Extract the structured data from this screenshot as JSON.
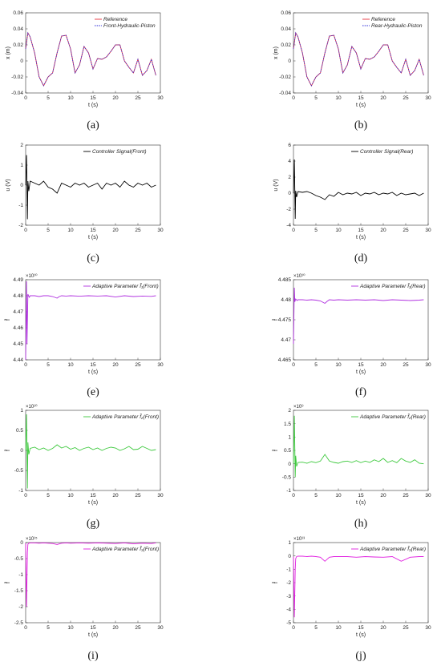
{
  "chart_data": [
    {
      "type": "line",
      "caption": "(a)",
      "xlabel": "t (s)",
      "ylabel": "x (m)",
      "xlim": [
        0,
        30
      ],
      "ylim": [
        -0.04,
        0.06
      ],
      "xticks": [
        "0",
        "5",
        "10",
        "15",
        "20",
        "25",
        "30"
      ],
      "yticks": [
        "0.06",
        "0.04",
        "0.02",
        "0",
        "-0.02",
        "-0.04"
      ],
      "exponent": "",
      "legend_position": "top-right",
      "series": [
        {
          "name": "Reference",
          "color": "#e8323c",
          "style": "solid",
          "x": [
            0,
            0.5,
            1,
            2,
            3,
            4,
            5,
            6,
            7,
            8,
            9,
            10,
            11,
            12,
            13,
            14,
            15,
            16,
            17,
            18,
            19,
            20,
            21,
            22,
            23,
            24,
            25,
            26,
            27,
            28,
            29
          ],
          "y": [
            0.015,
            0.035,
            0.03,
            0.01,
            -0.02,
            -0.031,
            -0.02,
            -0.015,
            0.01,
            0.031,
            0.032,
            0.015,
            -0.015,
            -0.005,
            0.018,
            0.01,
            -0.01,
            0.003,
            0.002,
            0.005,
            0.012,
            0.02,
            0.02,
            0.0,
            -0.008,
            -0.015,
            0.002,
            -0.018,
            -0.012,
            0.002,
            -0.018
          ]
        },
        {
          "name": "Front-Hydraulic-Piston",
          "color": "#2a2ad8",
          "style": "dotted",
          "x": [
            0,
            0.5,
            1,
            2,
            3,
            4,
            5,
            6,
            7,
            8,
            9,
            10,
            11,
            12,
            13,
            14,
            15,
            16,
            17,
            18,
            19,
            20,
            21,
            22,
            23,
            24,
            25,
            26,
            27,
            28,
            29
          ],
          "y": [
            0.015,
            0.035,
            0.03,
            0.01,
            -0.02,
            -0.031,
            -0.02,
            -0.015,
            0.01,
            0.031,
            0.032,
            0.015,
            -0.015,
            -0.005,
            0.018,
            0.01,
            -0.01,
            0.003,
            0.002,
            0.005,
            0.012,
            0.02,
            0.02,
            0.0,
            -0.008,
            -0.015,
            0.002,
            -0.018,
            -0.012,
            0.002,
            -0.018
          ]
        }
      ]
    },
    {
      "type": "line",
      "caption": "(b)",
      "xlabel": "t (s)",
      "ylabel": "x (m)",
      "xlim": [
        0,
        30
      ],
      "ylim": [
        -0.04,
        0.06
      ],
      "xticks": [
        "0",
        "5",
        "10",
        "15",
        "20",
        "25",
        "30"
      ],
      "yticks": [
        "0.06",
        "0.04",
        "0.02",
        "0",
        "-0.02",
        "-0.04"
      ],
      "exponent": "",
      "legend_position": "top-right",
      "series": [
        {
          "name": "Reference",
          "color": "#e8323c",
          "style": "solid",
          "x": [
            0,
            0.5,
            1,
            2,
            3,
            4,
            5,
            6,
            7,
            8,
            9,
            10,
            11,
            12,
            13,
            14,
            15,
            16,
            17,
            18,
            19,
            20,
            21,
            22,
            23,
            24,
            25,
            26,
            27,
            28,
            29
          ],
          "y": [
            0.015,
            0.035,
            0.03,
            0.01,
            -0.02,
            -0.031,
            -0.02,
            -0.015,
            0.01,
            0.031,
            0.032,
            0.015,
            -0.015,
            -0.005,
            0.018,
            0.01,
            -0.01,
            0.003,
            0.002,
            0.005,
            0.012,
            0.02,
            0.02,
            0.0,
            -0.008,
            -0.015,
            0.002,
            -0.018,
            -0.012,
            0.002,
            -0.018
          ]
        },
        {
          "name": "Rear-Hydraulic-Piston",
          "color": "#2a2ad8",
          "style": "dotted",
          "x": [
            0,
            0.5,
            1,
            2,
            3,
            4,
            5,
            6,
            7,
            8,
            9,
            10,
            11,
            12,
            13,
            14,
            15,
            16,
            17,
            18,
            19,
            20,
            21,
            22,
            23,
            24,
            25,
            26,
            27,
            28,
            29
          ],
          "y": [
            0.015,
            0.035,
            0.03,
            0.01,
            -0.02,
            -0.031,
            -0.02,
            -0.015,
            0.01,
            0.031,
            0.032,
            0.015,
            -0.015,
            -0.005,
            0.018,
            0.01,
            -0.01,
            0.003,
            0.002,
            0.005,
            0.012,
            0.02,
            0.02,
            0.0,
            -0.008,
            -0.015,
            0.002,
            -0.018,
            -0.012,
            0.002,
            -0.018
          ]
        }
      ]
    },
    {
      "type": "line",
      "caption": "(c)",
      "xlabel": "t (s)",
      "ylabel": "u (V)",
      "xlim": [
        0,
        30
      ],
      "ylim": [
        -2,
        2
      ],
      "xticks": [
        "0",
        "5",
        "10",
        "15",
        "20",
        "25",
        "30"
      ],
      "yticks": [
        "2",
        "1",
        "0",
        "-1",
        "-2"
      ],
      "exponent": "",
      "legend_position": "top-right",
      "series": [
        {
          "name": "Controller Signal(Front)",
          "color": "#000000",
          "style": "solid",
          "x": [
            0,
            0.2,
            0.4,
            0.5,
            0.7,
            1,
            2,
            3,
            4,
            5,
            6,
            7,
            8,
            9,
            10,
            11,
            12,
            13,
            14,
            15,
            16,
            17,
            18,
            19,
            20,
            21,
            22,
            23,
            24,
            25,
            26,
            27,
            28,
            29
          ],
          "y": [
            0,
            1.5,
            -1.7,
            0.2,
            -0.3,
            0.2,
            0.1,
            0.0,
            0.2,
            -0.1,
            -0.2,
            -0.4,
            0.1,
            0.0,
            -0.1,
            0.1,
            0.0,
            0.1,
            -0.1,
            0.0,
            0.1,
            -0.2,
            0.1,
            0.0,
            0.1,
            -0.1,
            0.2,
            0.0,
            -0.1,
            0.1,
            0.0,
            0.1,
            -0.1,
            0.0
          ]
        }
      ]
    },
    {
      "type": "line",
      "caption": "(d)",
      "xlabel": "t (s)",
      "ylabel": "u (V)",
      "xlim": [
        0,
        30
      ],
      "ylim": [
        -4,
        6
      ],
      "xticks": [
        "0",
        "5",
        "10",
        "15",
        "20",
        "25",
        "30"
      ],
      "yticks": [
        "6",
        "4",
        "2",
        "0",
        "-2",
        "-4"
      ],
      "exponent": "",
      "legend_position": "top-right",
      "series": [
        {
          "name": "Controller Signal(Rear)",
          "color": "#000000",
          "style": "solid",
          "x": [
            0,
            0.2,
            0.4,
            0.5,
            0.7,
            1,
            2,
            3,
            4,
            5,
            6,
            7,
            8,
            9,
            10,
            11,
            12,
            13,
            14,
            15,
            16,
            17,
            18,
            19,
            20,
            21,
            22,
            23,
            24,
            25,
            26,
            27,
            28,
            29
          ],
          "y": [
            0,
            4.2,
            -3.2,
            0.3,
            -0.5,
            0.2,
            0.1,
            0.2,
            0.0,
            -0.3,
            -0.5,
            -0.8,
            -0.2,
            -0.4,
            0.1,
            -0.2,
            0.0,
            -0.1,
            0.1,
            -0.3,
            0.0,
            -0.1,
            0.1,
            -0.2,
            0.0,
            -0.1,
            0.1,
            -0.3,
            0.0,
            -0.2,
            -0.1,
            0.0,
            -0.3,
            0.0
          ]
        }
      ]
    },
    {
      "type": "line",
      "caption": "(e)",
      "xlabel": "t (s)",
      "ylabel": "f̂",
      "xlim": [
        0,
        30
      ],
      "ylim": [
        4.44,
        4.49
      ],
      "xticks": [
        "0",
        "5",
        "10",
        "15",
        "20",
        "25",
        "30"
      ],
      "yticks": [
        "4.49",
        "4.48",
        "4.47",
        "4.46",
        "4.45",
        "4.44"
      ],
      "exponent": "×10¹⁰",
      "legend_position": "top-right",
      "series": [
        {
          "name": "Adaptive Parameter f̂₁(Front)",
          "color": "#b030e0",
          "style": "solid",
          "x": [
            0,
            0.2,
            0.3,
            0.5,
            0.8,
            1,
            2,
            3,
            4,
            5,
            6,
            7,
            7.5,
            8,
            9,
            10,
            12,
            14,
            16,
            18,
            20,
            22,
            24,
            26,
            28,
            29
          ],
          "y": [
            4.44,
            4.489,
            4.45,
            4.481,
            4.479,
            4.48,
            4.48,
            4.4795,
            4.48,
            4.48,
            4.4795,
            4.4785,
            4.4795,
            4.48,
            4.4798,
            4.48,
            4.4797,
            4.48,
            4.4798,
            4.48,
            4.4792,
            4.48,
            4.4795,
            4.4798,
            4.4796,
            4.48
          ]
        }
      ]
    },
    {
      "type": "line",
      "caption": "(f)",
      "xlabel": "t (s)",
      "ylabel": "f̂",
      "xlim": [
        0,
        30
      ],
      "ylim": [
        4.465,
        4.485
      ],
      "xticks": [
        "0",
        "5",
        "10",
        "15",
        "20",
        "25",
        "30"
      ],
      "yticks": [
        "4.485",
        "4.48",
        "4.475",
        "4.47",
        "4.465"
      ],
      "exponent": "×10¹⁰",
      "legend_position": "top-right",
      "series": [
        {
          "name": "Adaptive Parameter f̂₁(Rear)",
          "color": "#b030e0",
          "style": "solid",
          "x": [
            0,
            0.2,
            0.3,
            0.5,
            0.8,
            1,
            2,
            3,
            4,
            5,
            6,
            7,
            7.5,
            8,
            9,
            10,
            12,
            14,
            16,
            18,
            20,
            22,
            24,
            26,
            28,
            29
          ],
          "y": [
            4.469,
            4.483,
            4.4795,
            4.4802,
            4.4798,
            4.48,
            4.48,
            4.4799,
            4.48,
            4.4799,
            4.4797,
            4.4791,
            4.4796,
            4.48,
            4.4799,
            4.48,
            4.4799,
            4.48,
            4.4799,
            4.48,
            4.4798,
            4.48,
            4.4799,
            4.4798,
            4.4799,
            4.48
          ]
        }
      ]
    },
    {
      "type": "line",
      "caption": "(g)",
      "xlabel": "t (s)",
      "ylabel": "f̂",
      "xlim": [
        0,
        30
      ],
      "ylim": [
        -1,
        1
      ],
      "xticks": [
        "0",
        "5",
        "10",
        "15",
        "20",
        "25",
        "30"
      ],
      "yticks": [
        "1",
        "0.5",
        "0",
        "-0.5",
        "-1"
      ],
      "exponent": "×10¹⁰",
      "legend_position": "top-right",
      "series": [
        {
          "name": "Adaptive Parameter f̂₂(Front)",
          "color": "#3ec93e",
          "style": "solid",
          "x": [
            0,
            0.2,
            0.4,
            0.5,
            0.7,
            1,
            2,
            3,
            4,
            5,
            6,
            7,
            8,
            9,
            10,
            11,
            12,
            13,
            14,
            15,
            16,
            17,
            18,
            19,
            20,
            21,
            22,
            23,
            24,
            25,
            26,
            27,
            28,
            29
          ],
          "y": [
            0,
            0.9,
            -0.95,
            0.2,
            -0.1,
            0.05,
            0.08,
            0.02,
            0.06,
            0.0,
            0.05,
            0.14,
            0.06,
            0.1,
            0.03,
            0.07,
            0.0,
            0.05,
            0.08,
            0.02,
            0.06,
            0.0,
            0.05,
            0.08,
            0.06,
            0.0,
            0.04,
            0.1,
            0.02,
            0.03,
            0.1,
            0.05,
            0.0,
            0.02
          ]
        }
      ]
    },
    {
      "type": "line",
      "caption": "(h)",
      "xlabel": "t (s)",
      "ylabel": "f̂",
      "xlim": [
        0,
        30
      ],
      "ylim": [
        -1,
        2
      ],
      "xticks": [
        "0",
        "5",
        "10",
        "15",
        "20",
        "25",
        "30"
      ],
      "yticks": [
        "2",
        "1.5",
        "1",
        "0.5",
        "0",
        "-0.5",
        "-1"
      ],
      "exponent": "×10⁹",
      "legend_position": "top-right",
      "series": [
        {
          "name": "Adaptive Parameter f̂₂(Rear)",
          "color": "#3ec93e",
          "style": "solid",
          "x": [
            0,
            0.2,
            0.4,
            0.5,
            0.7,
            1,
            2,
            3,
            4,
            5,
            6,
            7,
            8,
            9,
            10,
            11,
            12,
            13,
            14,
            15,
            16,
            17,
            18,
            19,
            20,
            21,
            22,
            23,
            24,
            25,
            26,
            27,
            28,
            29
          ],
          "y": [
            0,
            1.8,
            -0.5,
            0.3,
            -0.1,
            0.05,
            0.06,
            0.02,
            0.08,
            0.04,
            0.1,
            0.35,
            0.1,
            0.05,
            0.02,
            0.08,
            0.1,
            0.05,
            0.12,
            0.04,
            0.1,
            0.05,
            0.15,
            0.08,
            0.2,
            0.05,
            0.12,
            0.04,
            0.2,
            0.1,
            0.05,
            0.15,
            0.02,
            0.0
          ]
        }
      ]
    },
    {
      "type": "line",
      "caption": "(i)",
      "xlabel": "t (s)",
      "ylabel": "f̂",
      "xlim": [
        0,
        30
      ],
      "ylim": [
        -2.5,
        0
      ],
      "xticks": [
        "0",
        "5",
        "10",
        "15",
        "20",
        "25",
        "30"
      ],
      "yticks": [
        "0",
        "-0.5",
        "-1",
        "-1.5",
        "-2",
        "-2.5"
      ],
      "exponent": "×10¹⁵",
      "legend_position": "top-right",
      "series": [
        {
          "name": "Adaptive Parameter f̂₃(Front)",
          "color": "#e020e0",
          "style": "solid",
          "x": [
            0,
            0.2,
            0.4,
            0.5,
            0.7,
            1,
            2,
            3,
            4,
            5,
            6,
            7,
            8,
            9,
            10,
            12,
            14,
            16,
            18,
            20,
            22,
            24,
            26,
            28,
            29
          ],
          "y": [
            -0.02,
            -2.0,
            -0.3,
            -0.05,
            -0.02,
            -0.01,
            -0.01,
            -0.02,
            -0.01,
            -0.02,
            -0.03,
            -0.06,
            -0.02,
            -0.01,
            -0.02,
            -0.01,
            -0.02,
            -0.01,
            -0.02,
            -0.03,
            -0.01,
            -0.04,
            -0.02,
            -0.03,
            -0.01
          ]
        }
      ]
    },
    {
      "type": "line",
      "caption": "(j)",
      "xlabel": "t (s)",
      "ylabel": "f̂",
      "xlim": [
        0,
        30
      ],
      "ylim": [
        -5,
        1
      ],
      "xticks": [
        "0",
        "5",
        "10",
        "15",
        "20",
        "25",
        "30"
      ],
      "yticks": [
        "1",
        "0",
        "-1",
        "-2",
        "-3",
        "-4",
        "-5"
      ],
      "exponent": "×10¹³",
      "legend_position": "top-right",
      "series": [
        {
          "name": "Adaptive Parameter f̂₃(Rear)",
          "color": "#e020e0",
          "style": "solid",
          "x": [
            0,
            0.2,
            0.4,
            0.5,
            0.7,
            1,
            2,
            3,
            4,
            5,
            6,
            7,
            8,
            9,
            10,
            12,
            14,
            16,
            18,
            20,
            22,
            24,
            26,
            28,
            29
          ],
          "y": [
            -0.05,
            -4.6,
            -1.0,
            -0.2,
            -0.05,
            -0.02,
            -0.02,
            -0.05,
            -0.02,
            -0.05,
            -0.1,
            -0.4,
            -0.1,
            -0.05,
            -0.05,
            -0.05,
            -0.1,
            -0.05,
            -0.08,
            -0.1,
            -0.05,
            -0.4,
            -0.1,
            -0.05,
            -0.05
          ]
        }
      ]
    }
  ]
}
